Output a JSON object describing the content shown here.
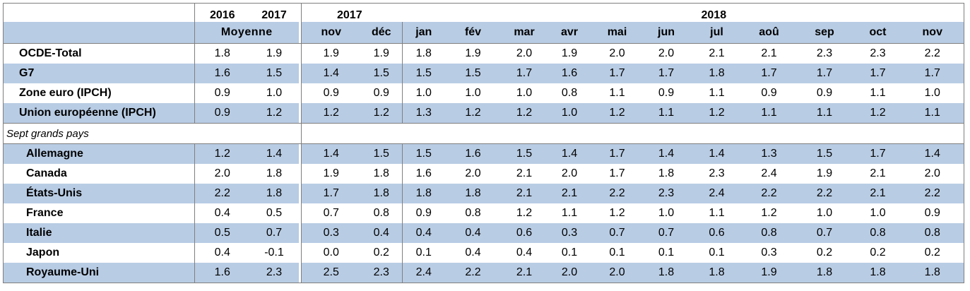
{
  "header": {
    "year_2016": "2016",
    "year_2017": "2017",
    "period_2017": "2017",
    "period_2018": "2018",
    "moyenne": "Moyenne",
    "months": [
      "nov",
      "déc",
      "jan",
      "fév",
      "mar",
      "avr",
      "mai",
      "jun",
      "jul",
      "aoû",
      "sep",
      "oct",
      "nov"
    ]
  },
  "aggregates": [
    {
      "label": "OCDE-Total",
      "v2016": "1.8",
      "v2017": "1.9",
      "months": [
        "1.9",
        "1.9",
        "1.8",
        "1.9",
        "2.0",
        "1.9",
        "2.0",
        "2.0",
        "2.1",
        "2.1",
        "2.3",
        "2.3",
        "2.2"
      ]
    },
    {
      "label": "G7",
      "v2016": "1.6",
      "v2017": "1.5",
      "months": [
        "1.4",
        "1.5",
        "1.5",
        "1.5",
        "1.7",
        "1.6",
        "1.7",
        "1.7",
        "1.8",
        "1.7",
        "1.7",
        "1.7",
        "1.7"
      ]
    },
    {
      "label": "Zone euro (IPCH)",
      "v2016": "0.9",
      "v2017": "1.0",
      "months": [
        "0.9",
        "0.9",
        "1.0",
        "1.0",
        "1.0",
        "0.8",
        "1.1",
        "0.9",
        "1.1",
        "0.9",
        "0.9",
        "1.1",
        "1.0"
      ]
    },
    {
      "label": "Union européenne (IPCH)",
      "v2016": "0.9",
      "v2017": "1.2",
      "months": [
        "1.2",
        "1.2",
        "1.3",
        "1.2",
        "1.2",
        "1.0",
        "1.2",
        "1.1",
        "1.2",
        "1.1",
        "1.1",
        "1.2",
        "1.1"
      ]
    }
  ],
  "section_label": "Sept grands pays",
  "countries": [
    {
      "label": "Allemagne",
      "v2016": "1.2",
      "v2017": "1.4",
      "months": [
        "1.4",
        "1.5",
        "1.5",
        "1.6",
        "1.5",
        "1.4",
        "1.7",
        "1.4",
        "1.4",
        "1.3",
        "1.5",
        "1.7",
        "1.4"
      ]
    },
    {
      "label": "Canada",
      "v2016": "2.0",
      "v2017": "1.8",
      "months": [
        "1.9",
        "1.8",
        "1.6",
        "2.0",
        "2.1",
        "2.0",
        "1.7",
        "1.8",
        "2.3",
        "2.4",
        "1.9",
        "2.1",
        "2.0"
      ]
    },
    {
      "label": "États-Unis",
      "v2016": "2.2",
      "v2017": "1.8",
      "months": [
        "1.7",
        "1.8",
        "1.8",
        "1.8",
        "2.1",
        "2.1",
        "2.2",
        "2.3",
        "2.4",
        "2.2",
        "2.2",
        "2.1",
        "2.2"
      ]
    },
    {
      "label": "France",
      "v2016": "0.4",
      "v2017": "0.5",
      "months": [
        "0.7",
        "0.8",
        "0.9",
        "0.8",
        "1.2",
        "1.1",
        "1.2",
        "1.0",
        "1.1",
        "1.2",
        "1.0",
        "1.0",
        "0.9"
      ]
    },
    {
      "label": "Italie",
      "v2016": "0.5",
      "v2017": "0.7",
      "months": [
        "0.3",
        "0.4",
        "0.4",
        "0.4",
        "0.6",
        "0.3",
        "0.7",
        "0.7",
        "0.6",
        "0.8",
        "0.7",
        "0.8",
        "0.8"
      ]
    },
    {
      "label": "Japon",
      "v2016": "0.4",
      "v2017": "-0.1",
      "months": [
        "0.0",
        "0.2",
        "0.1",
        "0.4",
        "0.4",
        "0.1",
        "0.1",
        "0.1",
        "0.1",
        "0.3",
        "0.2",
        "0.2",
        "0.2"
      ]
    },
    {
      "label": "Royaume-Uni",
      "v2016": "1.6",
      "v2017": "2.3",
      "months": [
        "2.5",
        "2.3",
        "2.4",
        "2.2",
        "2.1",
        "2.0",
        "2.0",
        "1.8",
        "1.8",
        "1.9",
        "1.8",
        "1.8",
        "1.8"
      ]
    }
  ]
}
